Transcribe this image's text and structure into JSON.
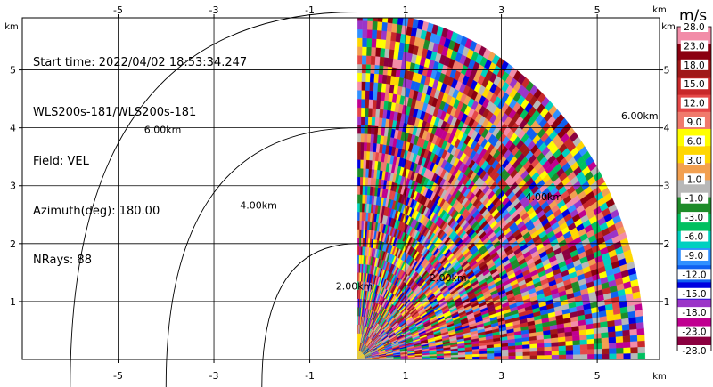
{
  "chart_data": {
    "type": "heatmap",
    "plot_kind": "radar PPI sector (quadrant) with range rings",
    "info": {
      "start_time": "Start time: 2022/04/02 18:53:34.247",
      "instrument": "WLS200s-181/WLS200s-181",
      "field": "Field: VEL",
      "azimuth": "Azimuth(deg): 180.00",
      "nrays": "NRays: 88"
    },
    "x_unit": "km",
    "y_unit": "km",
    "xlim": [
      -7.0,
      6.3
    ],
    "ylim": [
      0.0,
      5.9
    ],
    "x_ticks": [
      "-5",
      "-3",
      "-1",
      "1",
      "3",
      "5"
    ],
    "x_tick_values": [
      -5,
      -3,
      -1,
      1,
      3,
      5
    ],
    "y_ticks": [
      "1",
      "2",
      "3",
      "4",
      "5"
    ],
    "y_tick_values": [
      1,
      2,
      3,
      4,
      5
    ],
    "grid": true,
    "range_rings": [
      {
        "label": "2.00km",
        "range_km": 2,
        "label_x": -1.2,
        "label_y": 1.3
      },
      {
        "label": "4.00km",
        "range_km": 4,
        "label_x": -3.2,
        "label_y": 2.7
      },
      {
        "label": "6.00km",
        "range_km": 6,
        "label_x": -5.2,
        "label_y": 4.0
      }
    ],
    "ring_labels_in_sector": [
      {
        "label": "2.00km",
        "x": 1.5,
        "y": 1.35
      },
      {
        "label": "4.00km",
        "x": 3.5,
        "y": 2.75
      },
      {
        "label": "6.00km",
        "x": 5.5,
        "y": 4.15
      }
    ],
    "sector": {
      "azimuth_start_deg": 0,
      "azimuth_end_deg": 90,
      "max_range_km": 6.0,
      "rays": 88,
      "gates": 40
    },
    "colorbar": {
      "unit": "m/s",
      "labels": [
        "28.0",
        "23.0",
        "18.0",
        "15.0",
        "12.0",
        "9.0",
        "6.0",
        "3.0",
        "1.0",
        "-1.0",
        "-3.0",
        "-6.0",
        "-9.0",
        "-12.0",
        "-15.0",
        "-18.0",
        "-23.0",
        "-28.0"
      ],
      "colors": [
        "#f28ca8",
        "#8b0010",
        "#a01818",
        "#c8282a",
        "#e54848",
        "#f07a6c",
        "#ffff00",
        "#ffd700",
        "#f2a050",
        "#b8b8b8",
        "#1e8c2a",
        "#00c060",
        "#00d0c0",
        "#3090ff",
        "#1060f0",
        "#0000e0",
        "#9b35c8",
        "#c00090",
        "#8b0040"
      ],
      "value_colors": [
        "#9b35c8",
        "#c00090",
        "#8b0040",
        "#0000e0",
        "#1060f0",
        "#3090ff",
        "#00d0c0",
        "#00c060",
        "#1e8c2a",
        "#b8b8b8",
        "#f2a050",
        "#ffd700",
        "#ffff00",
        "#f07a6c",
        "#e54848",
        "#c8282a",
        "#a01818",
        "#8b0010",
        "#f28ca8"
      ]
    }
  }
}
